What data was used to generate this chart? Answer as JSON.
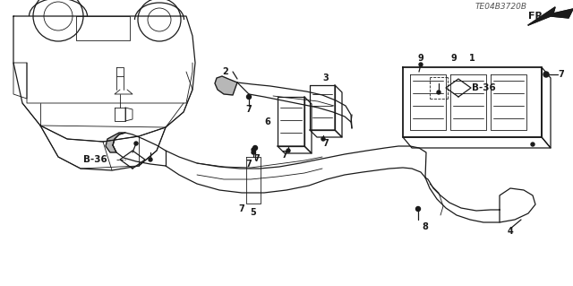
{
  "bg_color": "#ffffff",
  "line_color": "#1a1a1a",
  "label_color": "#111111",
  "fig_width": 6.4,
  "fig_height": 3.19,
  "dpi": 100,
  "watermark": "TE04B3720B",
  "fr_label": "FR.",
  "lw_main": 0.9,
  "lw_thin": 0.6,
  "lw_bold": 1.3
}
